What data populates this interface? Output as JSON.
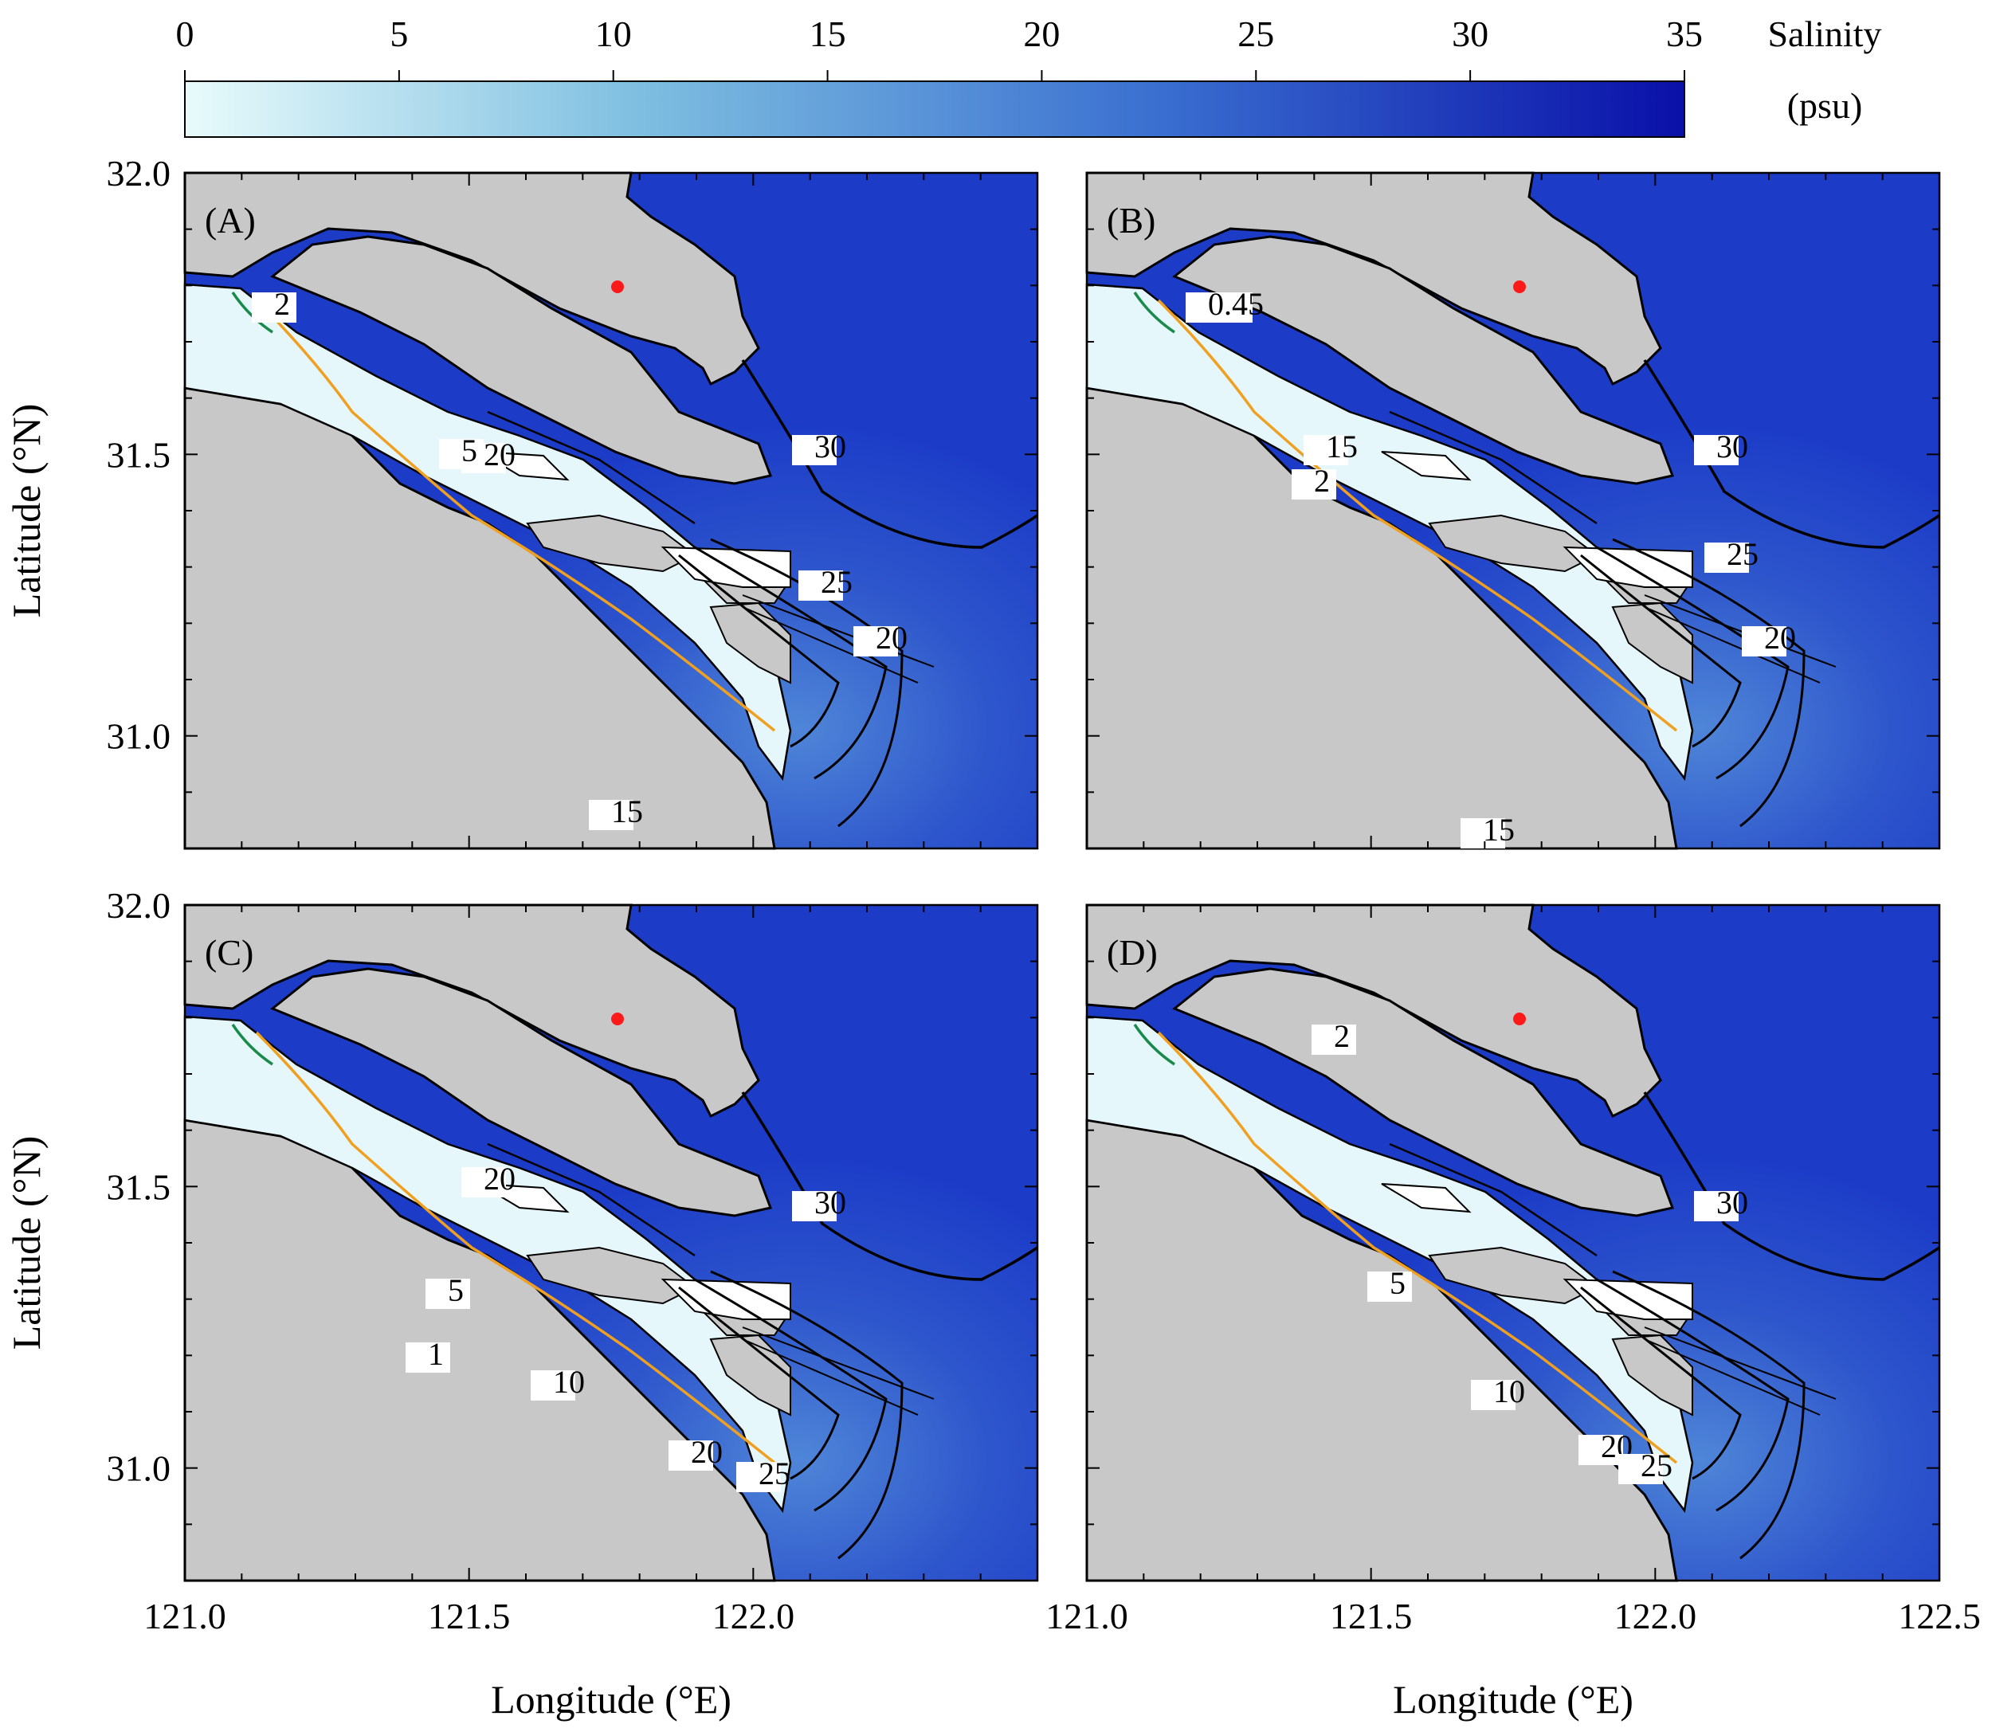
{
  "colorbar": {
    "title_line1": "Salinity",
    "title_line2": "(psu)",
    "ticks": [
      "0",
      "5",
      "10",
      "15",
      "20",
      "25",
      "30",
      "35"
    ],
    "range": [
      0,
      35
    ],
    "stops": [
      "#e8fbfb",
      "#7fbfe0",
      "#3a6fd0",
      "#0a10a8"
    ]
  },
  "axes": {
    "xlabel": "Longitude (°E)",
    "ylabel": "Latitude (°N)",
    "xticks_left": [
      "121.0",
      "121.5",
      "122.0"
    ],
    "xticks_right": [
      "121.0",
      "121.5",
      "122.0",
      "122.5"
    ],
    "yticks": [
      "32.0",
      "31.5",
      "31.0"
    ],
    "lon_range": [
      121.0,
      122.5
    ],
    "lat_range": [
      30.8,
      32.0
    ]
  },
  "colors": {
    "land": "#c8c8c8",
    "ocean": "#1c3cc8",
    "fresh": "#e6f7fb",
    "contour_2": "#f0a020",
    "contour_045": "#1a8a4a",
    "station": "#ff1a1a"
  },
  "panels": [
    {
      "id": "A",
      "label": "(A)",
      "contour_labels": [
        "30",
        "20",
        "5",
        "25",
        "20",
        "15",
        "2"
      ]
    },
    {
      "id": "B",
      "label": "(B)",
      "contour_labels": [
        "30",
        "15",
        "2",
        "25",
        "20",
        "0.45",
        "15"
      ]
    },
    {
      "id": "C",
      "label": "(C)",
      "contour_labels": [
        "30",
        "20",
        "5",
        "1",
        "10",
        "20",
        "25"
      ]
    },
    {
      "id": "D",
      "label": "(D)",
      "contour_labels": [
        "30",
        "5",
        "10",
        "20",
        "25",
        "2"
      ]
    }
  ]
}
